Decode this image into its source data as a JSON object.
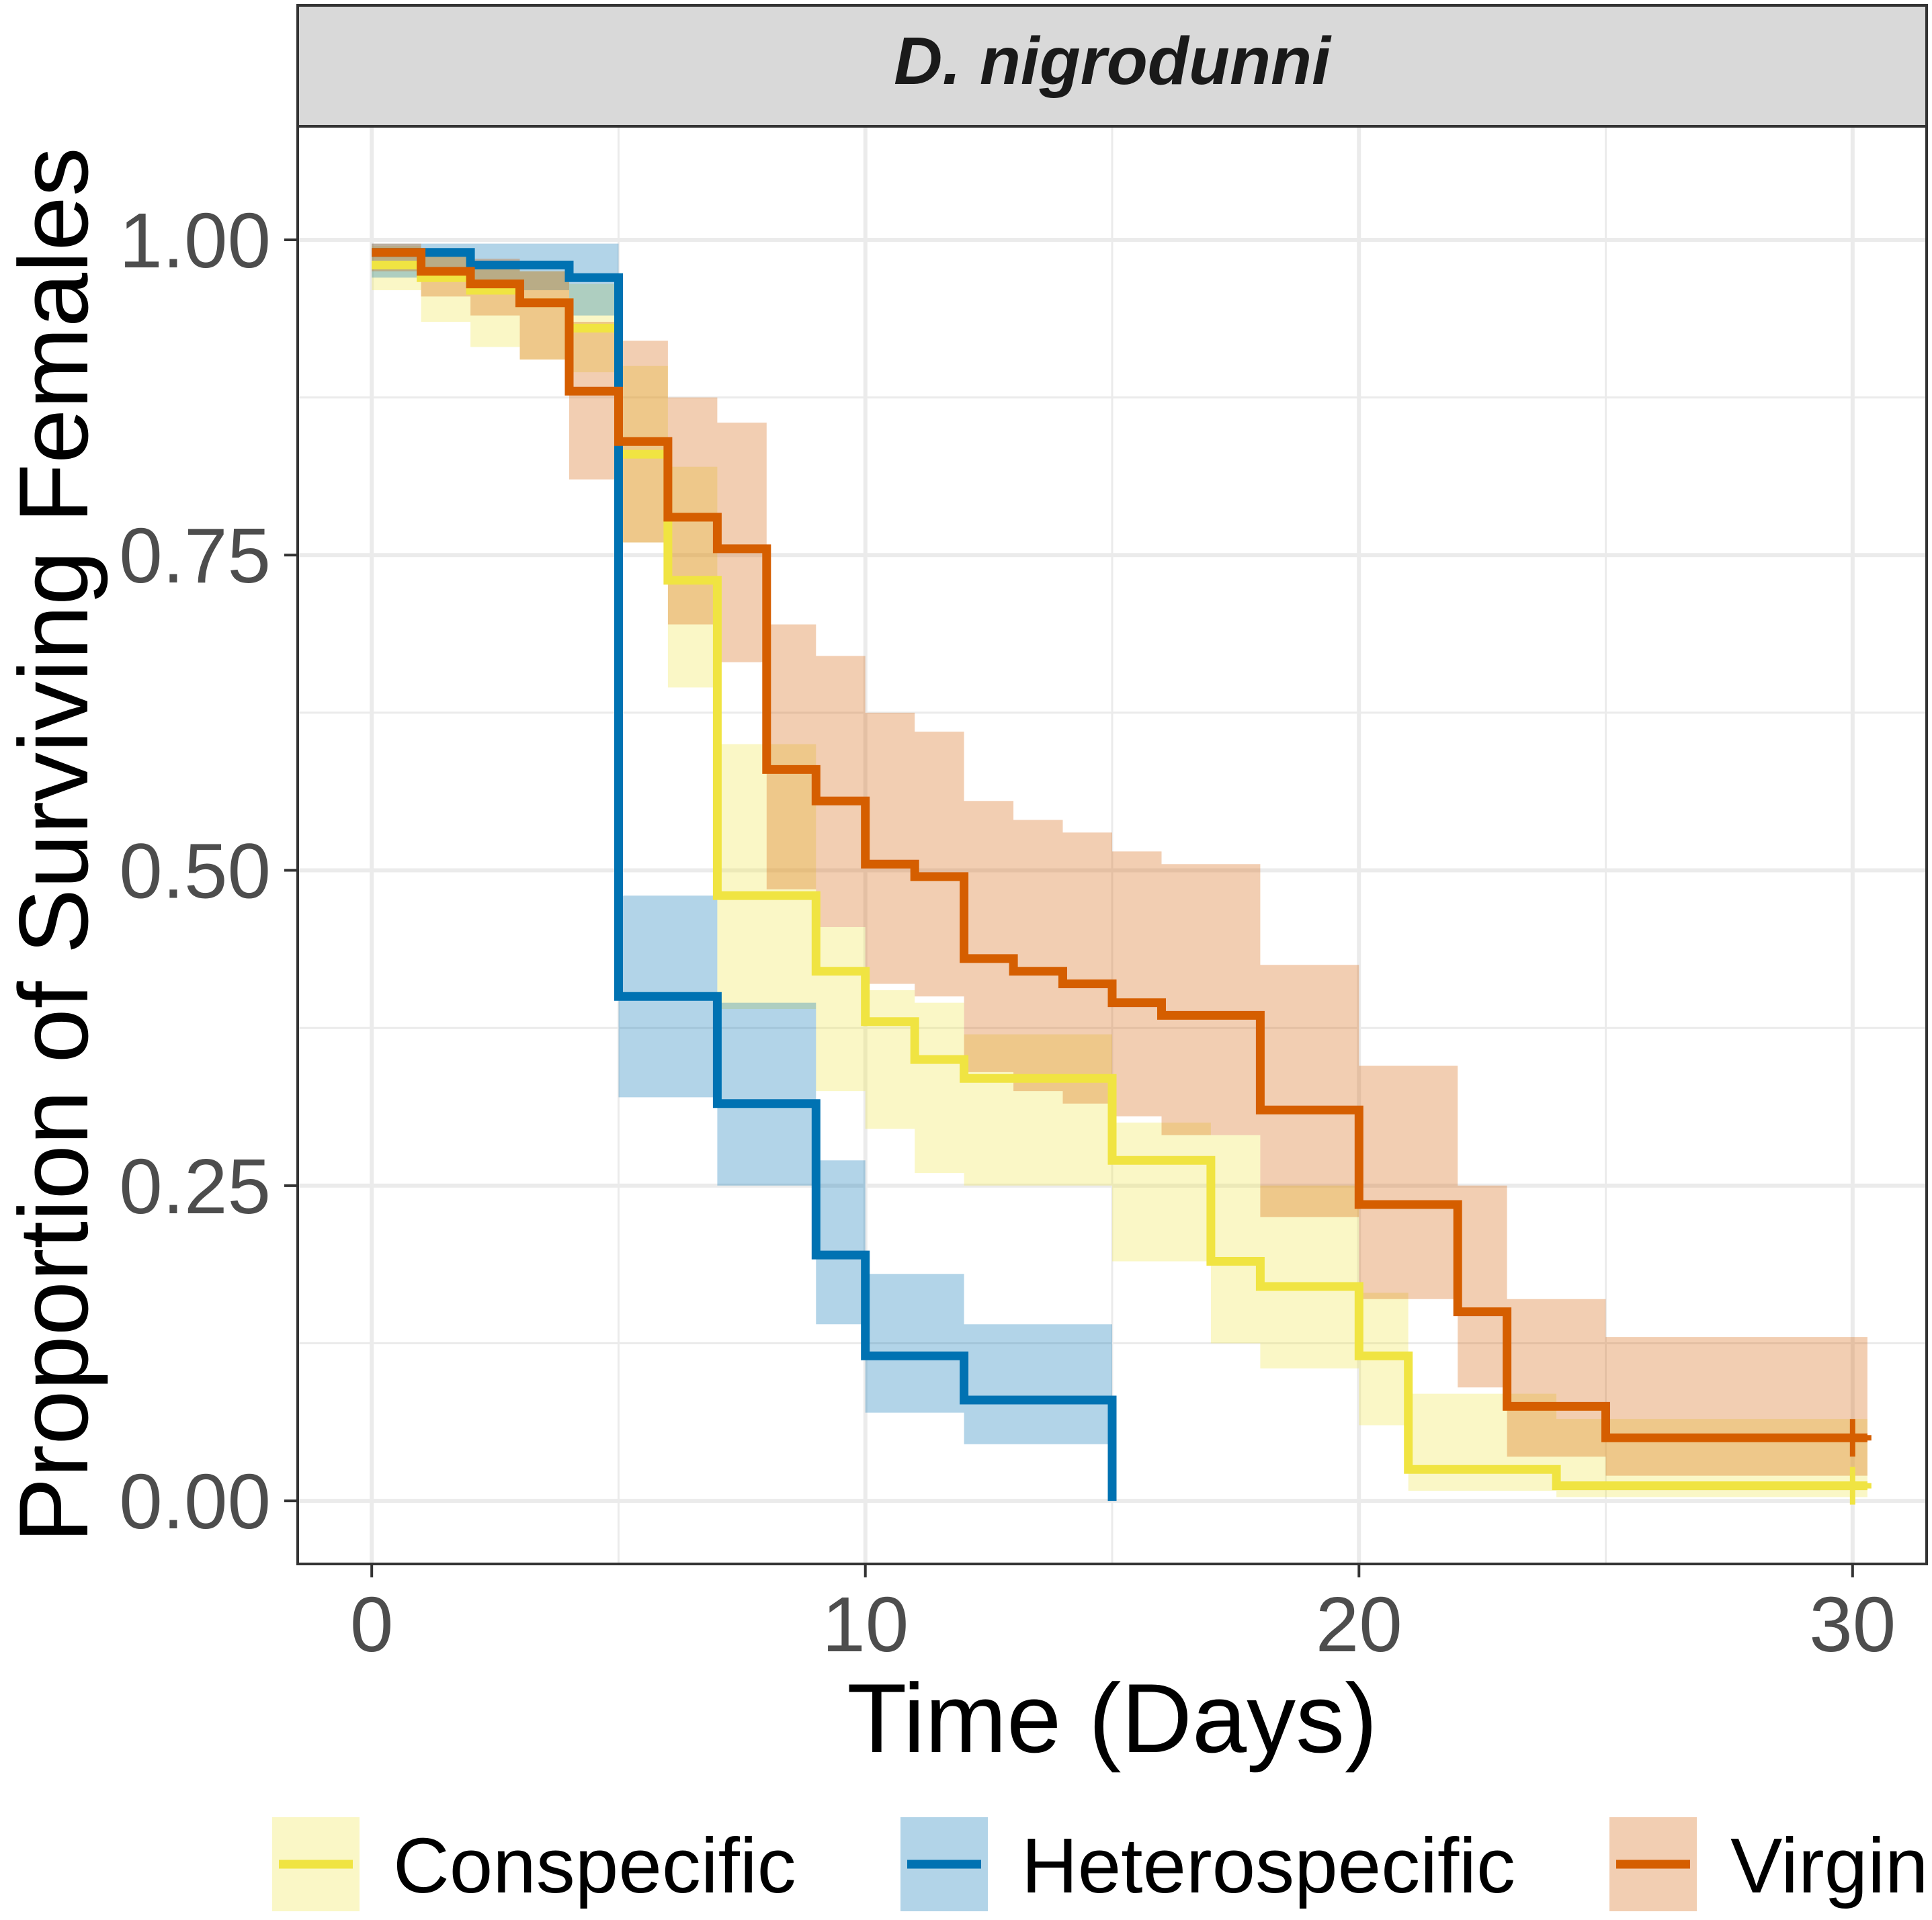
{
  "chart_data": {
    "type": "line",
    "subtype": "kaplan-meier step survival with confidence bands",
    "facet_title": "D. nigrodunni",
    "xlabel": "Time (Days)",
    "ylabel": "Proportion of Surviving Females",
    "xlim": [
      -1.5,
      31.5
    ],
    "ylim": [
      -0.05,
      1.09
    ],
    "x_ticks": [
      0,
      10,
      20,
      30
    ],
    "x_tick_labels": [
      "0",
      "10",
      "20",
      "30"
    ],
    "y_ticks": [
      0,
      0.25,
      0.5,
      0.75,
      1
    ],
    "y_tick_labels": [
      "0.00",
      "0.25",
      "0.50",
      "0.75",
      "1.00"
    ],
    "grid": true,
    "legend_position": "bottom",
    "series": [
      {
        "name": "Conspecific",
        "color": "#F0E442",
        "band_opacity": 0.3,
        "censored_at": [
          30
        ],
        "steps": [
          {
            "x": 0,
            "y": 0.98,
            "lo": 0.96,
            "hi": 0.995
          },
          {
            "x": 1,
            "y": 0.97,
            "lo": 0.935,
            "hi": 0.99
          },
          {
            "x": 2,
            "y": 0.96,
            "lo": 0.915,
            "hi": 0.98
          },
          {
            "x": 3,
            "y": 0.95,
            "lo": 0.905,
            "hi": 0.975
          },
          {
            "x": 4,
            "y": 0.93,
            "lo": 0.895,
            "hi": 0.965
          },
          {
            "x": 5,
            "y": 0.83,
            "lo": 0.76,
            "hi": 0.9
          },
          {
            "x": 6,
            "y": 0.73,
            "lo": 0.645,
            "hi": 0.82
          },
          {
            "x": 7,
            "y": 0.48,
            "lo": 0.39,
            "hi": 0.6
          },
          {
            "x": 9,
            "y": 0.42,
            "lo": 0.325,
            "hi": 0.455
          },
          {
            "x": 10,
            "y": 0.38,
            "lo": 0.295,
            "hi": 0.405
          },
          {
            "x": 11,
            "y": 0.35,
            "lo": 0.26,
            "hi": 0.395
          },
          {
            "x": 12,
            "y": 0.335,
            "lo": 0.25,
            "hi": 0.37
          },
          {
            "x": 15,
            "y": 0.27,
            "lo": 0.19,
            "hi": 0.3
          },
          {
            "x": 17,
            "y": 0.19,
            "lo": 0.125,
            "hi": 0.29
          },
          {
            "x": 18,
            "y": 0.17,
            "lo": 0.105,
            "hi": 0.25
          },
          {
            "x": 20,
            "y": 0.115,
            "lo": 0.06,
            "hi": 0.165
          },
          {
            "x": 21,
            "y": 0.025,
            "lo": 0.008,
            "hi": 0.085
          },
          {
            "x": 24,
            "y": 0.012,
            "lo": 0.003,
            "hi": 0.065
          },
          {
            "x": 30.3,
            "y": 0.012,
            "lo": 0.003,
            "hi": 0.065
          }
        ]
      },
      {
        "name": "Heterospecific",
        "color": "#0072B2",
        "band_opacity": 0.3,
        "censored_at": [],
        "steps": [
          {
            "x": 0,
            "y": 0.99,
            "lo": 0.97,
            "hi": 0.997
          },
          {
            "x": 2,
            "y": 0.98,
            "lo": 0.96,
            "hi": 0.997
          },
          {
            "x": 4,
            "y": 0.97,
            "lo": 0.94,
            "hi": 0.997
          },
          {
            "x": 5,
            "y": 0.4,
            "lo": 0.32,
            "hi": 0.48
          },
          {
            "x": 7,
            "y": 0.315,
            "lo": 0.25,
            "hi": 0.395
          },
          {
            "x": 9,
            "y": 0.195,
            "lo": 0.14,
            "hi": 0.27
          },
          {
            "x": 10,
            "y": 0.115,
            "lo": 0.07,
            "hi": 0.18
          },
          {
            "x": 12,
            "y": 0.08,
            "lo": 0.045,
            "hi": 0.14
          },
          {
            "x": 15,
            "y": 0,
            "lo": 0,
            "hi": 0
          }
        ]
      },
      {
        "name": "Virgin",
        "color": "#D55E00",
        "band_opacity": 0.3,
        "censored_at": [
          30
        ],
        "steps": [
          {
            "x": 0,
            "y": 0.99,
            "lo": 0.975,
            "hi": 0.997
          },
          {
            "x": 1,
            "y": 0.975,
            "lo": 0.955,
            "hi": 0.99
          },
          {
            "x": 2,
            "y": 0.965,
            "lo": 0.94,
            "hi": 0.985
          },
          {
            "x": 3,
            "y": 0.95,
            "lo": 0.905,
            "hi": 0.975
          },
          {
            "x": 4,
            "y": 0.88,
            "lo": 0.81,
            "hi": 0.935
          },
          {
            "x": 5,
            "y": 0.84,
            "lo": 0.76,
            "hi": 0.92
          },
          {
            "x": 6,
            "y": 0.78,
            "lo": 0.695,
            "hi": 0.875
          },
          {
            "x": 7,
            "y": 0.755,
            "lo": 0.665,
            "hi": 0.855
          },
          {
            "x": 8,
            "y": 0.58,
            "lo": 0.485,
            "hi": 0.695
          },
          {
            "x": 9,
            "y": 0.555,
            "lo": 0.455,
            "hi": 0.67
          },
          {
            "x": 10,
            "y": 0.505,
            "lo": 0.41,
            "hi": 0.625
          },
          {
            "x": 11,
            "y": 0.495,
            "lo": 0.4,
            "hi": 0.61
          },
          {
            "x": 12,
            "y": 0.43,
            "lo": 0.34,
            "hi": 0.555
          },
          {
            "x": 13,
            "y": 0.42,
            "lo": 0.325,
            "hi": 0.54
          },
          {
            "x": 14,
            "y": 0.41,
            "lo": 0.315,
            "hi": 0.53
          },
          {
            "x": 15,
            "y": 0.395,
            "lo": 0.305,
            "hi": 0.515
          },
          {
            "x": 16,
            "y": 0.385,
            "lo": 0.29,
            "hi": 0.505
          },
          {
            "x": 18,
            "y": 0.31,
            "lo": 0.225,
            "hi": 0.425
          },
          {
            "x": 20,
            "y": 0.235,
            "lo": 0.16,
            "hi": 0.345
          },
          {
            "x": 22,
            "y": 0.15,
            "lo": 0.09,
            "hi": 0.25
          },
          {
            "x": 23,
            "y": 0.075,
            "lo": 0.035,
            "hi": 0.16
          },
          {
            "x": 25,
            "y": 0.05,
            "lo": 0.02,
            "hi": 0.13
          },
          {
            "x": 30.3,
            "y": 0.05,
            "lo": 0.02,
            "hi": 0.13
          }
        ]
      }
    ]
  }
}
